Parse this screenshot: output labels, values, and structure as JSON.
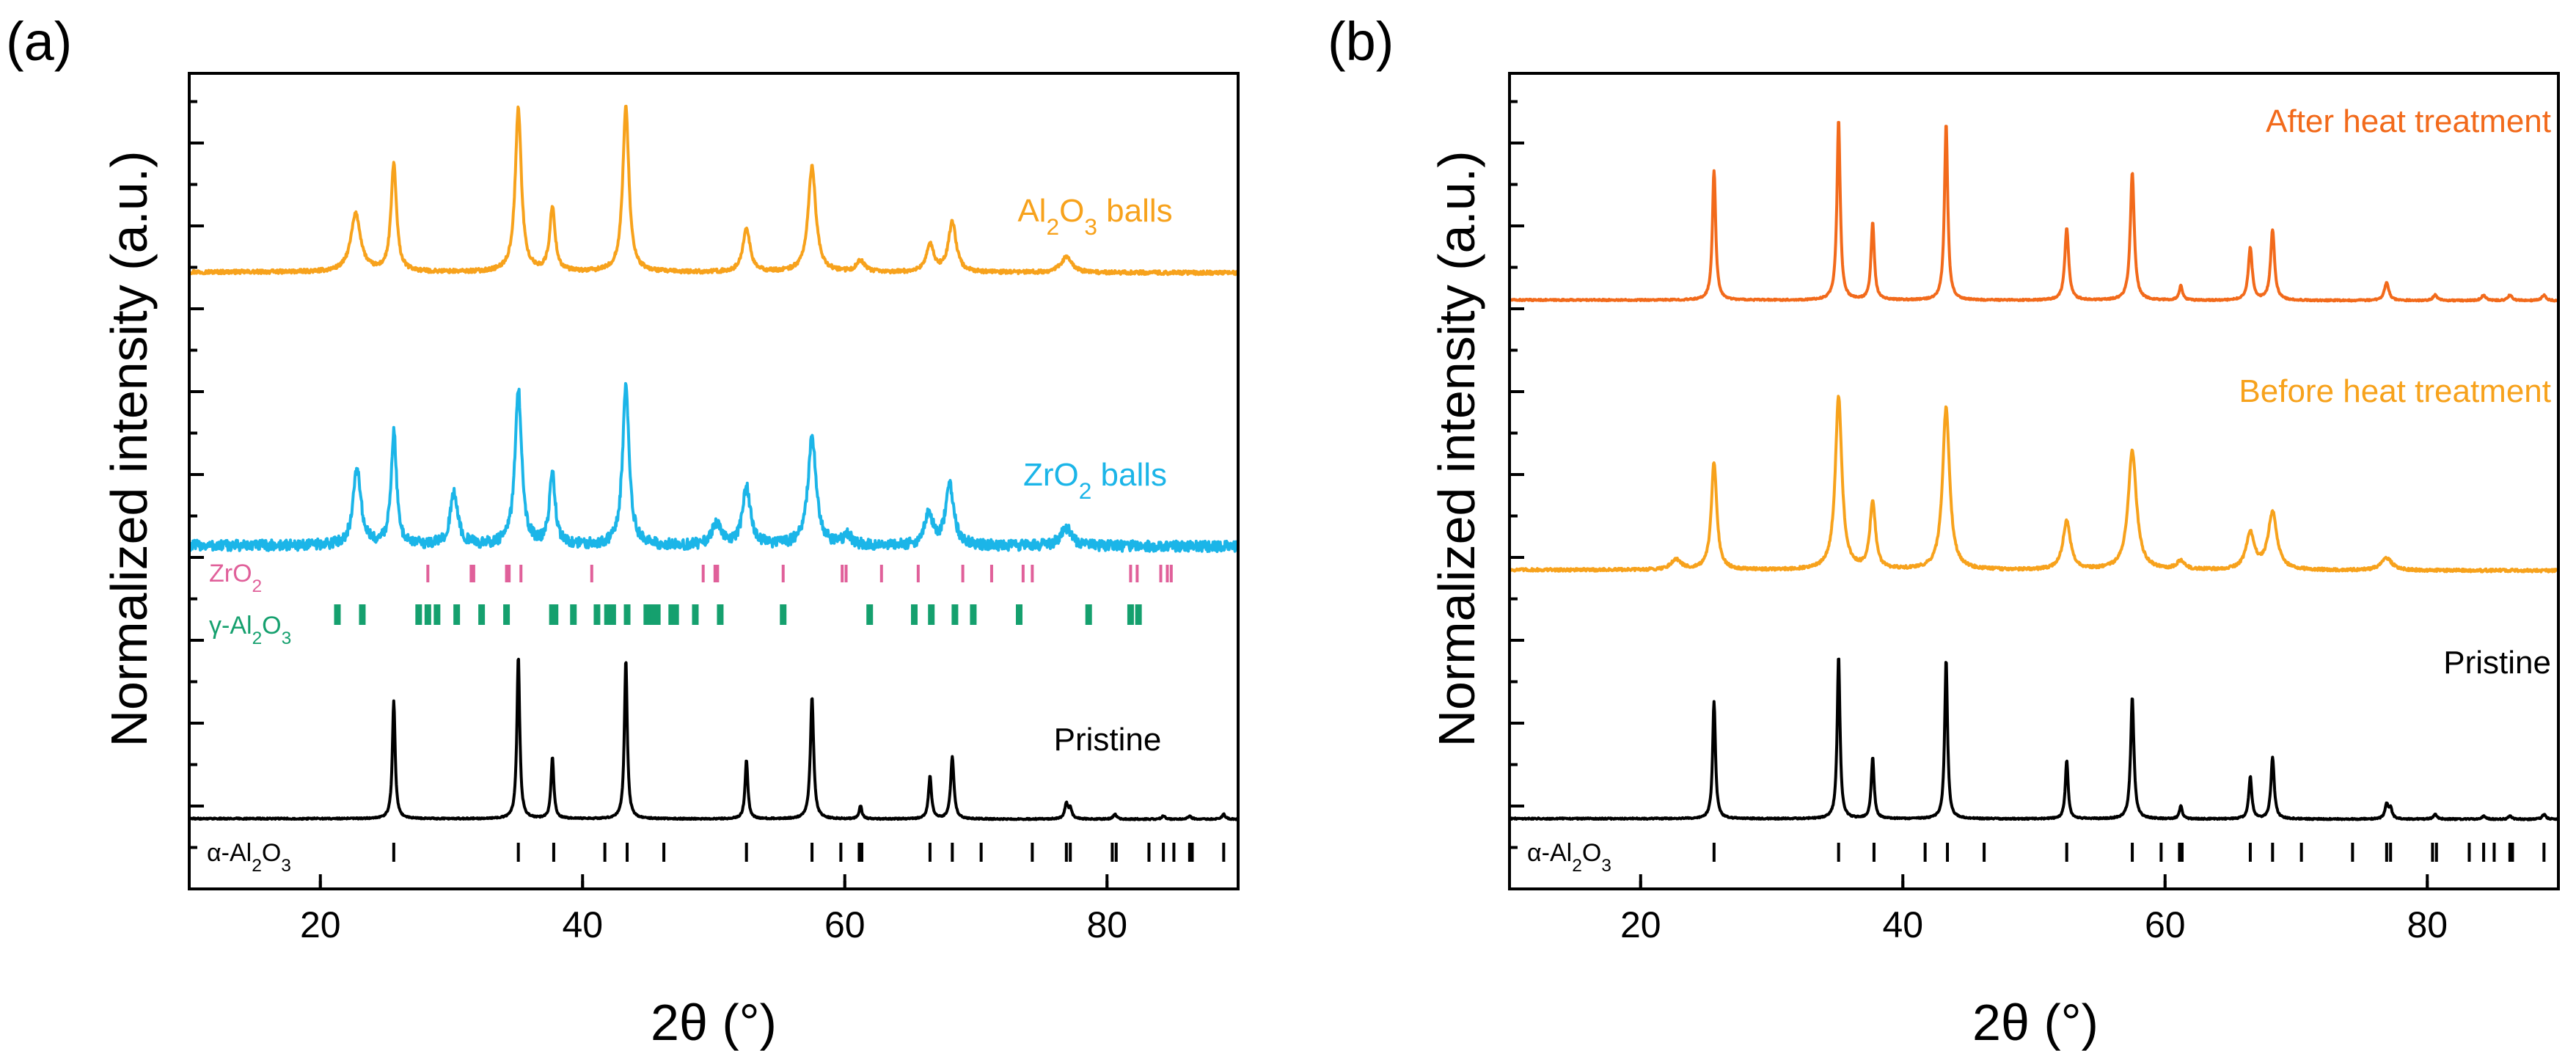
{
  "chart_data": [
    {
      "panel_label": "(a)",
      "type": "line",
      "xlabel": "2θ (°)",
      "ylabel": "Normalized intensity (a.u.)",
      "xlim": [
        10,
        90
      ],
      "xticks": [
        20,
        40,
        60,
        80
      ],
      "yticks_shown": false,
      "series": [
        {
          "name": "Al2O3 balls",
          "label_parts": [
            [
              "Al",
              ""
            ],
            [
              "2",
              "sub"
            ],
            [
              "O",
              ""
            ],
            [
              "3",
              "sub"
            ],
            [
              " balls",
              ""
            ]
          ],
          "color": "#F7A21C",
          "noise": 0.01,
          "peaks": [
            {
              "x": 22.7,
              "h": 0.3,
              "w": 0.45
            },
            {
              "x": 25.6,
              "h": 0.56,
              "w": 0.25
            },
            {
              "x": 35.1,
              "h": 0.85,
              "w": 0.28
            },
            {
              "x": 37.7,
              "h": 0.33,
              "w": 0.25
            },
            {
              "x": 43.3,
              "h": 0.86,
              "w": 0.28
            },
            {
              "x": 52.5,
              "h": 0.23,
              "w": 0.32
            },
            {
              "x": 57.5,
              "h": 0.55,
              "w": 0.35
            },
            {
              "x": 61.2,
              "h": 0.06,
              "w": 0.35
            },
            {
              "x": 66.5,
              "h": 0.14,
              "w": 0.35
            },
            {
              "x": 68.2,
              "h": 0.26,
              "w": 0.35
            },
            {
              "x": 76.9,
              "h": 0.08,
              "w": 0.5
            }
          ]
        },
        {
          "name": "ZrO2 balls",
          "label_parts": [
            [
              "ZrO",
              ""
            ],
            [
              "2",
              "sub"
            ],
            [
              " balls",
              ""
            ]
          ],
          "color": "#1BB5E8",
          "noise": 0.03,
          "peaks": [
            {
              "x": 22.8,
              "h": 0.43,
              "w": 0.35
            },
            {
              "x": 25.6,
              "h": 0.63,
              "w": 0.25
            },
            {
              "x": 30.2,
              "h": 0.29,
              "w": 0.35
            },
            {
              "x": 35.1,
              "h": 0.88,
              "w": 0.3
            },
            {
              "x": 37.7,
              "h": 0.41,
              "w": 0.25
            },
            {
              "x": 43.3,
              "h": 0.88,
              "w": 0.3
            },
            {
              "x": 50.2,
              "h": 0.12,
              "w": 0.4
            },
            {
              "x": 52.5,
              "h": 0.33,
              "w": 0.35
            },
            {
              "x": 57.5,
              "h": 0.6,
              "w": 0.38
            },
            {
              "x": 60.2,
              "h": 0.06,
              "w": 0.35
            },
            {
              "x": 66.4,
              "h": 0.19,
              "w": 0.35
            },
            {
              "x": 68.0,
              "h": 0.33,
              "w": 0.38
            },
            {
              "x": 76.9,
              "h": 0.1,
              "w": 0.5
            }
          ]
        },
        {
          "name": "Pristine",
          "label_parts": [
            [
              "Pristine",
              ""
            ]
          ],
          "color": "#000000",
          "noise": 0.004,
          "peaks": [
            {
              "x": 25.6,
              "h": 0.72,
              "w": 0.13
            },
            {
              "x": 35.1,
              "h": 1.0,
              "w": 0.13
            },
            {
              "x": 37.7,
              "h": 0.38,
              "w": 0.13
            },
            {
              "x": 43.3,
              "h": 0.98,
              "w": 0.13
            },
            {
              "x": 52.5,
              "h": 0.36,
              "w": 0.13
            },
            {
              "x": 57.5,
              "h": 0.75,
              "w": 0.15
            },
            {
              "x": 61.2,
              "h": 0.08,
              "w": 0.13
            },
            {
              "x": 66.5,
              "h": 0.26,
              "w": 0.14
            },
            {
              "x": 68.2,
              "h": 0.38,
              "w": 0.15
            },
            {
              "x": 76.9,
              "h": 0.09,
              "w": 0.15
            },
            {
              "x": 77.2,
              "h": 0.06,
              "w": 0.15
            },
            {
              "x": 80.6,
              "h": 0.03,
              "w": 0.15
            },
            {
              "x": 84.3,
              "h": 0.02,
              "w": 0.15
            },
            {
              "x": 86.3,
              "h": 0.02,
              "w": 0.15
            },
            {
              "x": 88.9,
              "h": 0.03,
              "w": 0.15
            }
          ]
        }
      ],
      "references": [
        {
          "name": "ZrO2",
          "label_parts": [
            [
              "ZrO",
              ""
            ],
            [
              "2",
              "sub"
            ]
          ],
          "color": "#E0609A",
          "positions": [
            28.2,
            31.5,
            31.7,
            34.2,
            34.4,
            35.3,
            40.7,
            49.2,
            50.1,
            50.3,
            55.3,
            59.8,
            60.1,
            62.8,
            65.6,
            69.0,
            71.2,
            73.6,
            74.3,
            81.8,
            82.3,
            84.1,
            84.6,
            84.9
          ]
        },
        {
          "name": "γ-Al2O3",
          "label_parts": [
            [
              "γ-Al",
              ""
            ],
            [
              "2",
              "sub"
            ],
            [
              "O",
              ""
            ],
            [
              "3",
              "sub"
            ]
          ],
          "color": "#15A06E",
          "positions": [
            21.3,
            23.2,
            27.5,
            28.2,
            28.9,
            30.4,
            32.3,
            34.2,
            37.7,
            37.9,
            39.3,
            41.1,
            41.9,
            42.3,
            43.4,
            44.9,
            45.1,
            45.4,
            45.7,
            46.8,
            47.1,
            48.6,
            50.5,
            55.3,
            61.9,
            65.3,
            66.6,
            68.4,
            69.8,
            73.3,
            78.6,
            81.8,
            82.4
          ]
        },
        {
          "name": "α-Al2O3",
          "label_parts": [
            [
              "α-Al",
              ""
            ],
            [
              "2",
              "sub"
            ],
            [
              "O",
              ""
            ],
            [
              "3",
              "sub"
            ]
          ],
          "color": "#000000",
          "positions": [
            25.6,
            35.1,
            37.8,
            41.7,
            43.4,
            46.2,
            52.5,
            57.5,
            59.7,
            61.1,
            61.3,
            66.5,
            68.2,
            70.4,
            74.3,
            76.9,
            77.2,
            80.4,
            80.7,
            83.2,
            84.3,
            85.1,
            86.3,
            86.5,
            88.9
          ]
        }
      ]
    },
    {
      "panel_label": "(b)",
      "type": "line",
      "xlabel": "2θ (°)",
      "ylabel": "Normalized intensity (a.u.)",
      "xlim": [
        10,
        90
      ],
      "xticks": [
        20,
        40,
        60,
        80
      ],
      "yticks_shown": false,
      "series": [
        {
          "name": "After heat treatment",
          "label_parts": [
            [
              "After heat treatment",
              ""
            ]
          ],
          "color": "#F26A1B",
          "noise": 0.004,
          "peaks": [
            {
              "x": 25.6,
              "h": 0.72,
              "w": 0.15
            },
            {
              "x": 35.1,
              "h": 1.0,
              "w": 0.15
            },
            {
              "x": 37.7,
              "h": 0.43,
              "w": 0.15
            },
            {
              "x": 43.3,
              "h": 0.98,
              "w": 0.15
            },
            {
              "x": 52.5,
              "h": 0.4,
              "w": 0.18
            },
            {
              "x": 57.5,
              "h": 0.71,
              "w": 0.18
            },
            {
              "x": 61.2,
              "h": 0.08,
              "w": 0.15
            },
            {
              "x": 66.5,
              "h": 0.29,
              "w": 0.18
            },
            {
              "x": 68.2,
              "h": 0.39,
              "w": 0.18
            },
            {
              "x": 76.9,
              "h": 0.1,
              "w": 0.2
            },
            {
              "x": 80.6,
              "h": 0.03,
              "w": 0.2
            },
            {
              "x": 84.3,
              "h": 0.03,
              "w": 0.2
            },
            {
              "x": 86.3,
              "h": 0.03,
              "w": 0.2
            },
            {
              "x": 88.9,
              "h": 0.03,
              "w": 0.2
            }
          ]
        },
        {
          "name": "Before heat treatment",
          "label_parts": [
            [
              "Before heat treatment",
              ""
            ]
          ],
          "color": "#F7A21C",
          "noise": 0.008,
          "peaks": [
            {
              "x": 22.7,
              "h": 0.06,
              "w": 0.45
            },
            {
              "x": 25.6,
              "h": 0.62,
              "w": 0.25
            },
            {
              "x": 35.1,
              "h": 1.0,
              "w": 0.3
            },
            {
              "x": 37.7,
              "h": 0.39,
              "w": 0.25
            },
            {
              "x": 43.3,
              "h": 0.94,
              "w": 0.32
            },
            {
              "x": 52.5,
              "h": 0.28,
              "w": 0.35
            },
            {
              "x": 57.5,
              "h": 0.69,
              "w": 0.38
            },
            {
              "x": 61.2,
              "h": 0.05,
              "w": 0.35
            },
            {
              "x": 66.5,
              "h": 0.21,
              "w": 0.38
            },
            {
              "x": 68.2,
              "h": 0.33,
              "w": 0.4
            },
            {
              "x": 76.9,
              "h": 0.07,
              "w": 0.5
            }
          ]
        },
        {
          "name": "Pristine",
          "label_parts": [
            [
              "Pristine",
              ""
            ]
          ],
          "color": "#000000",
          "noise": 0.004,
          "peaks": [
            {
              "x": 25.6,
              "h": 0.72,
              "w": 0.13
            },
            {
              "x": 35.1,
              "h": 1.0,
              "w": 0.13
            },
            {
              "x": 37.7,
              "h": 0.38,
              "w": 0.13
            },
            {
              "x": 43.3,
              "h": 0.98,
              "w": 0.13
            },
            {
              "x": 52.5,
              "h": 0.36,
              "w": 0.13
            },
            {
              "x": 57.5,
              "h": 0.75,
              "w": 0.15
            },
            {
              "x": 61.2,
              "h": 0.08,
              "w": 0.13
            },
            {
              "x": 66.5,
              "h": 0.26,
              "w": 0.14
            },
            {
              "x": 68.2,
              "h": 0.38,
              "w": 0.15
            },
            {
              "x": 76.9,
              "h": 0.09,
              "w": 0.15
            },
            {
              "x": 77.2,
              "h": 0.06,
              "w": 0.15
            },
            {
              "x": 80.6,
              "h": 0.03,
              "w": 0.15
            },
            {
              "x": 84.3,
              "h": 0.02,
              "w": 0.15
            },
            {
              "x": 86.3,
              "h": 0.02,
              "w": 0.15
            },
            {
              "x": 88.9,
              "h": 0.03,
              "w": 0.15
            }
          ]
        }
      ],
      "references": [
        {
          "name": "α-Al2O3",
          "label_parts": [
            [
              "α-Al",
              ""
            ],
            [
              "2",
              "sub"
            ],
            [
              "O",
              ""
            ],
            [
              "3",
              "sub"
            ]
          ],
          "color": "#000000",
          "positions": [
            25.6,
            35.1,
            37.8,
            41.7,
            43.4,
            46.2,
            52.5,
            57.5,
            59.7,
            61.1,
            61.3,
            66.5,
            68.2,
            70.4,
            74.3,
            76.9,
            77.2,
            80.4,
            80.7,
            83.2,
            84.3,
            85.1,
            86.3,
            86.5,
            88.9
          ]
        }
      ]
    }
  ]
}
